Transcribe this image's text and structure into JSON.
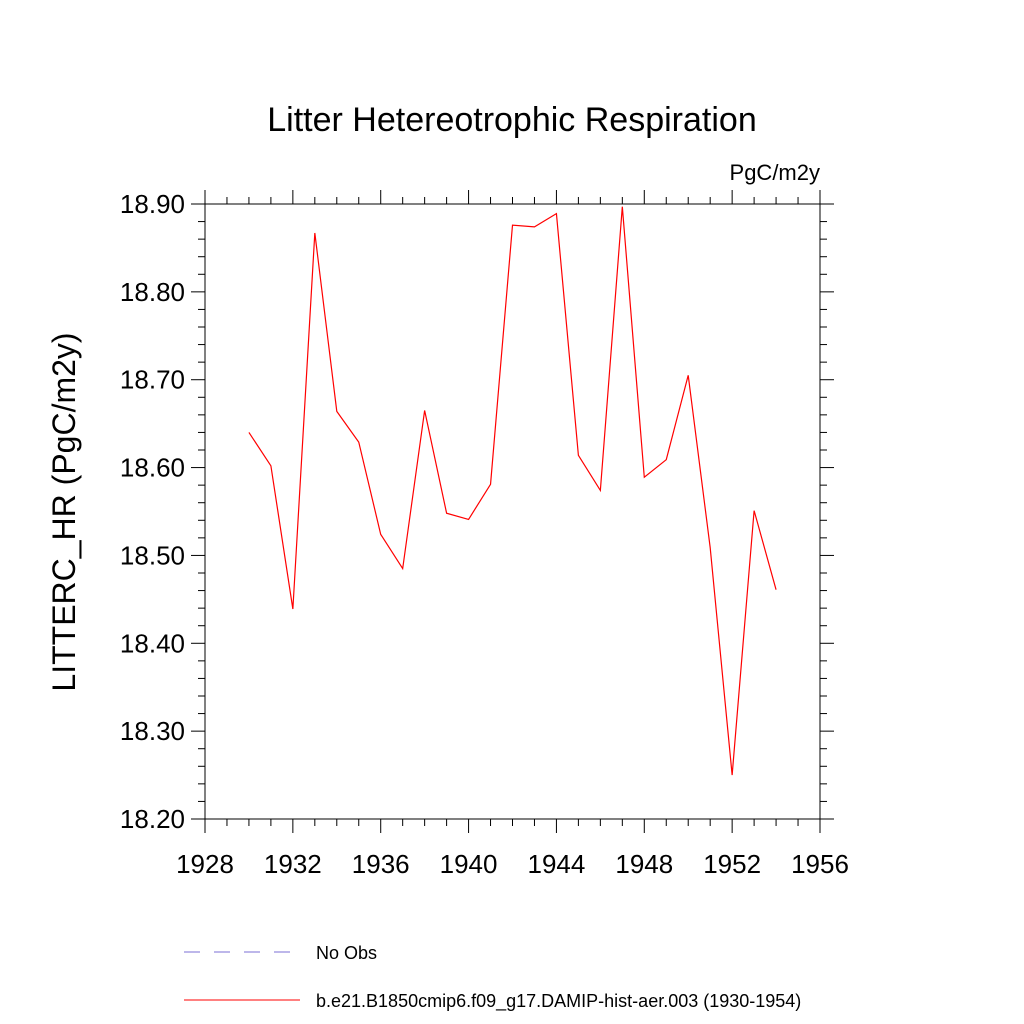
{
  "chart_data": {
    "type": "line",
    "title": "Litter Hetereotrophic Respiration",
    "units_label": "PgC/m2y",
    "ylabel": "LITTERC_HR  (PgC/m2y)",
    "xlabel": "",
    "xlim": [
      1928,
      1956
    ],
    "ylim": [
      18.2,
      18.9
    ],
    "x_ticks": [
      1928,
      1932,
      1936,
      1940,
      1944,
      1948,
      1952,
      1956
    ],
    "y_ticks": [
      "18.20",
      "18.30",
      "18.40",
      "18.50",
      "18.60",
      "18.70",
      "18.80",
      "18.90"
    ],
    "grid": false,
    "legend_position": "bottom",
    "series": [
      {
        "name": "b.e21.B1850cmip6.f09_g17.DAMIP-hist-aer.003 (1930-1954)",
        "color": "#ff0000",
        "style": "solid",
        "x": [
          1930,
          1931,
          1932,
          1933,
          1934,
          1935,
          1936,
          1937,
          1938,
          1939,
          1940,
          1941,
          1942,
          1943,
          1944,
          1945,
          1946,
          1947,
          1948,
          1949,
          1950,
          1951,
          1952,
          1953,
          1954
        ],
        "y": [
          18.64,
          18.602,
          18.439,
          18.867,
          18.664,
          18.629,
          18.524,
          18.485,
          18.665,
          18.548,
          18.541,
          18.581,
          18.876,
          18.874,
          18.889,
          18.614,
          18.574,
          18.897,
          18.589,
          18.609,
          18.705,
          18.509,
          18.25,
          18.551,
          18.461
        ]
      }
    ],
    "legend": [
      {
        "label": "No Obs",
        "color": "#7b6fd6",
        "style": "dashed"
      },
      {
        "label": "b.e21.B1850cmip6.f09_g17.DAMIP-hist-aer.003 (1930-1954)",
        "color": "#ff0000",
        "style": "solid"
      }
    ]
  }
}
